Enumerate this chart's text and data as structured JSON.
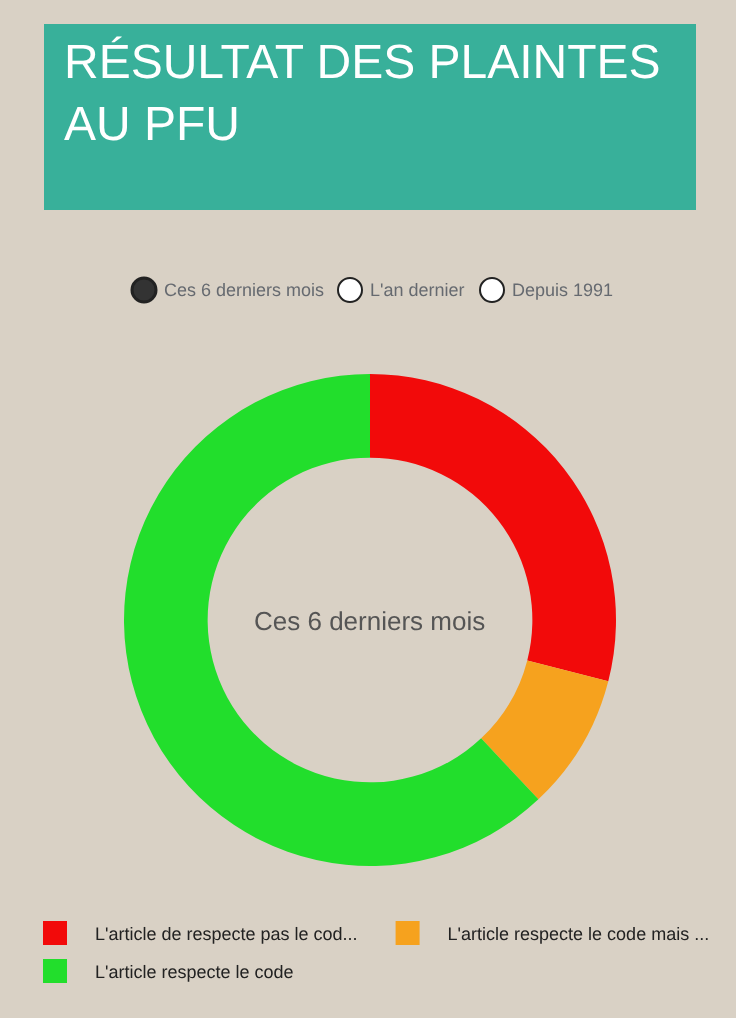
{
  "chart_data": {
    "type": "donut",
    "title": "RÉSULTAT DES PLAINTES AU PFU",
    "categories": [
      "L'article de respecte pas le cod...",
      "L'article respecte le code mais ...",
      "L'article respecte le code"
    ],
    "values": [
      29,
      9,
      62
    ],
    "colors": [
      "#f20a0a",
      "#f6a21e",
      "#22de2c"
    ],
    "annotations": [
      "Ces 6 derniers mois",
      "L'an dernier",
      "Depuis 1991",
      "Ces 6 derniers mois"
    ],
    "legend": "bottom"
  }
}
